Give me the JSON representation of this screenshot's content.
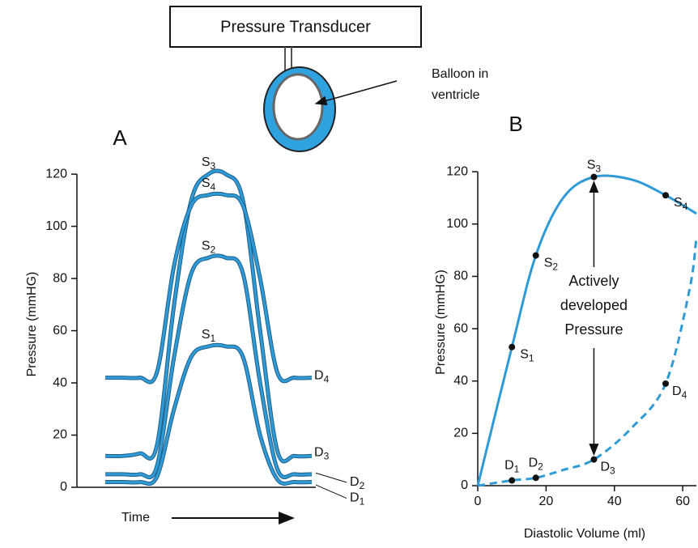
{
  "diagram": {
    "transducer_label": "Pressure Transducer",
    "balloon_label": [
      "Balloon in",
      "ventricle"
    ]
  },
  "chart_data": [
    {
      "type": "line",
      "panel": "A",
      "y_label": "Pressure (mmHG)",
      "x_label": "Time",
      "color": "#2f9bd6",
      "categories": [
        null,
        null,
        null,
        null,
        null,
        null,
        null,
        null,
        null,
        null,
        null,
        null,
        null
      ],
      "ylim": [
        0,
        125
      ],
      "yticks": [
        0,
        20,
        40,
        60,
        80,
        100,
        120
      ],
      "series": [
        {
          "values": [
            2,
            2,
            2,
            4,
            30,
            50,
            54,
            54,
            50,
            20,
            3,
            2,
            2
          ],
          "peak_label": {
            "text": "S",
            "sub": "1"
          },
          "end_label": {
            "text": "D",
            "sub": "1"
          }
        },
        {
          "values": [
            5,
            5,
            5,
            8,
            50,
            82,
            88,
            88,
            82,
            40,
            7,
            5,
            5
          ],
          "peak_label": {
            "text": "S",
            "sub": "2"
          },
          "end_label": {
            "text": "D",
            "sub": "2"
          }
        },
        {
          "values": [
            12,
            12,
            13,
            16,
            70,
            110,
            120,
            120,
            110,
            60,
            14,
            12,
            12
          ],
          "peak_label": {
            "text": "S",
            "sub": "3"
          },
          "end_label": {
            "text": "D",
            "sub": "3"
          }
        },
        {
          "values": [
            42,
            42,
            42,
            44,
            85,
            108,
            112,
            112,
            108,
            80,
            44,
            42,
            42
          ],
          "peak_label": {
            "text": "S",
            "sub": "4"
          },
          "end_label": {
            "text": "D",
            "sub": "4"
          }
        }
      ]
    },
    {
      "type": "line",
      "panel": "B",
      "y_label": "Pressure (mmHG)",
      "x_label": "Diastolic Volume (ml)",
      "color": "#2f9bd6",
      "xlim": [
        0,
        64
      ],
      "xticks": [
        0,
        20,
        40,
        60
      ],
      "ylim": [
        0,
        125
      ],
      "yticks": [
        0,
        20,
        40,
        60,
        80,
        100,
        120
      ],
      "annotation": [
        "Actively",
        "developed",
        "Pressure"
      ],
      "series": [
        {
          "style": "solid",
          "x": [
            0,
            10,
            17,
            25,
            34,
            45,
            55,
            64
          ],
          "values": [
            0,
            53,
            88,
            110,
            118,
            117,
            111,
            104
          ],
          "point_labels": [
            null,
            {
              "text": "S",
              "sub": "1"
            },
            {
              "text": "S",
              "sub": "2"
            },
            null,
            {
              "text": "S",
              "sub": "3"
            },
            null,
            {
              "text": "S",
              "sub": "4"
            },
            null
          ]
        },
        {
          "style": "dashed",
          "x": [
            0,
            10,
            17,
            25,
            34,
            45,
            55,
            62,
            64
          ],
          "values": [
            0,
            2,
            3,
            6,
            10,
            22,
            39,
            75,
            95
          ],
          "point_labels": [
            null,
            {
              "text": "D",
              "sub": "1"
            },
            {
              "text": "D",
              "sub": "2"
            },
            null,
            {
              "text": "D",
              "sub": "3"
            },
            null,
            {
              "text": "D",
              "sub": "4"
            },
            null,
            null
          ]
        }
      ]
    }
  ]
}
